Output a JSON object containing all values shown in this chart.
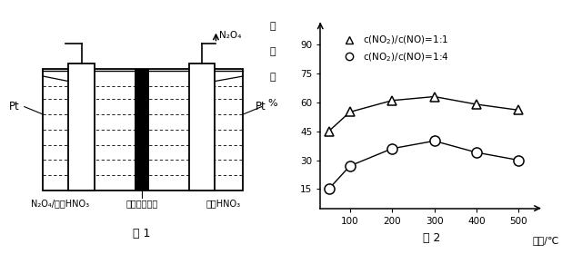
{
  "fig1": {
    "title": "图 1",
    "left_label": "N₂O₄/无水HNO₃",
    "center_label": "阳离子交换膜",
    "right_label": "无水HNO₃",
    "pt_left": "Pt",
    "pt_right": "Pt",
    "n2o4_label": "N₂O₄"
  },
  "fig2": {
    "title": "图 2",
    "ylabel_chars": [
      "脱",
      "氮",
      "率",
      "%"
    ],
    "xlabel": "温度/℃",
    "yticks": [
      15,
      30,
      45,
      60,
      75,
      90
    ],
    "xticks": [
      100,
      200,
      300,
      400,
      500
    ],
    "xmin": 30,
    "xmax": 545,
    "ymin": 5,
    "ymax": 100,
    "series1": {
      "label": "c(NO₂)/c(NO)=1:1",
      "x": [
        50,
        100,
        200,
        300,
        400,
        500
      ],
      "y": [
        45,
        55,
        61,
        63,
        59,
        56
      ],
      "marker": "^"
    },
    "series2": {
      "label": "c(NO₂)/c(NO)=1:4",
      "x": [
        50,
        100,
        200,
        300,
        400,
        500
      ],
      "y": [
        15,
        27,
        36,
        40,
        34,
        30
      ],
      "marker": "o"
    }
  }
}
